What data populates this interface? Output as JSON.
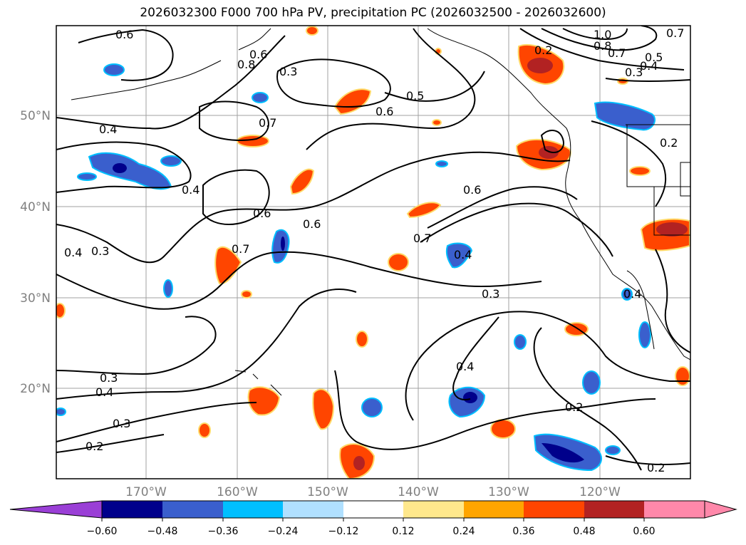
{
  "title": "2026032300 F000 700 hPa PV, precipitation PC (2026032500 - 2026032600)",
  "map": {
    "lat_labels": [
      "50°N",
      "40°N",
      "30°N",
      "20°N"
    ],
    "lon_labels": [
      "170°W",
      "160°W",
      "150°W",
      "140°W",
      "130°W",
      "120°W"
    ],
    "gridline_color": "#a0a0a0",
    "axis_label_color": "#808080"
  },
  "contour_labels": [
    "0.6",
    "0.8",
    "0.6",
    "0.3",
    "0.5",
    "0.7",
    "0.6",
    "0.4",
    "0.7",
    "0.4",
    "0.6",
    "0.6",
    "0.6",
    "0.7",
    "0.4",
    "0.3",
    "0.7",
    "0.4",
    "0.3",
    "0.4",
    "0.3",
    "0.4",
    "0.3",
    "0.2",
    "0.2",
    "1.0",
    "0.8",
    "0.7",
    "0.5",
    "0.4",
    "0.3",
    "0.7",
    "0.2",
    "0.4",
    "0.2",
    "0.2"
  ],
  "colorbar": {
    "ticks": [
      "−0.60",
      "−0.48",
      "−0.36",
      "−0.24",
      "−0.12",
      "0.12",
      "0.24",
      "0.36",
      "0.48",
      "0.60"
    ],
    "colors": {
      "under": "#9a3fd6",
      "bins": [
        "#00008b",
        "#3a5fcd",
        "#00bfff",
        "#b0e0ff",
        "#ffffff",
        "#ffe88c",
        "#ffa500",
        "#ff4500",
        "#b22222",
        "#ff88aa"
      ],
      "over": "#ff88aa"
    }
  }
}
